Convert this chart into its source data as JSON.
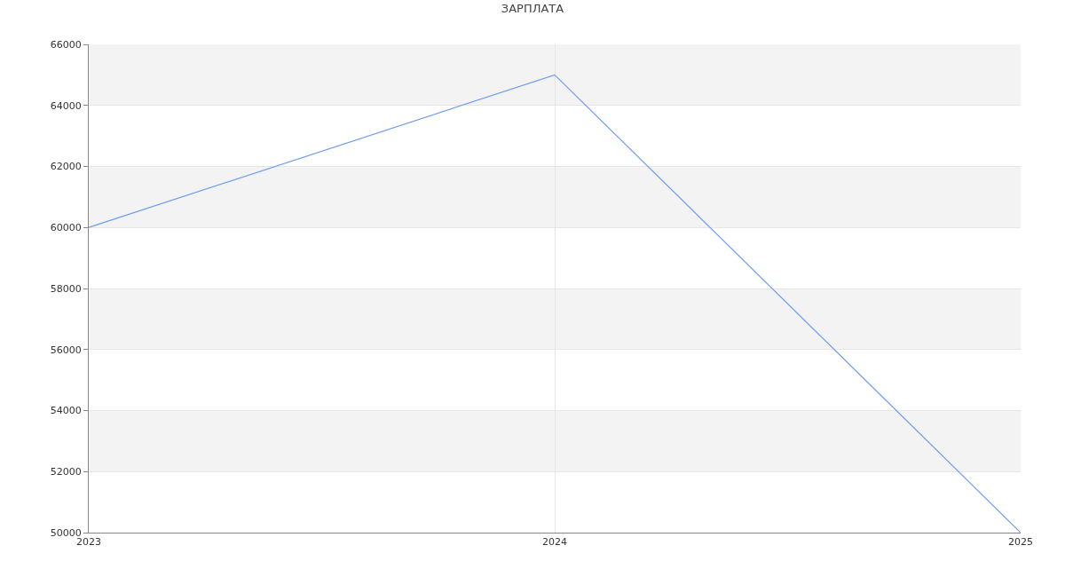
{
  "chart_data": {
    "type": "line",
    "title": "ЗАРПЛАТА",
    "x": [
      2023,
      2024,
      2025
    ],
    "series": [
      {
        "color": "#6f9cef",
        "values": [
          60000,
          65000,
          50000
        ]
      }
    ],
    "xlim": [
      2023,
      2025
    ],
    "xticks": [
      2023,
      2024,
      2025
    ],
    "ylim": [
      50000,
      66000
    ],
    "yticks": [
      50000,
      52000,
      54000,
      56000,
      58000,
      60000,
      62000,
      64000,
      66000
    ],
    "bands": [
      {
        "axis": "y",
        "from": 52000,
        "to": 54000,
        "color": "#f3f3f3"
      },
      {
        "axis": "y",
        "from": 56000,
        "to": 58000,
        "color": "#f3f3f3"
      },
      {
        "axis": "y",
        "from": 60000,
        "to": 62000,
        "color": "#f3f3f3"
      },
      {
        "axis": "y",
        "from": 64000,
        "to": 66000,
        "color": "#f3f3f3"
      }
    ],
    "grid": true
  }
}
